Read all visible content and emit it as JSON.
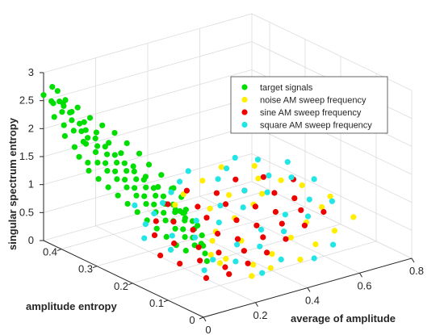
{
  "chart_data": {
    "type": "scatter",
    "title": "",
    "xlabel": "average of amplitude",
    "ylabel": "amplitude entropy",
    "zlabel": "singular spectrum entropy",
    "xlim": [
      0,
      0.8
    ],
    "ylim": [
      0,
      0.45
    ],
    "zlim": [
      0,
      3
    ],
    "x_ticks": [
      "0",
      "0.2",
      "0.4",
      "0.6",
      "0.8"
    ],
    "y_ticks": [
      "0",
      "0.1",
      "0.2",
      "0.3",
      "0.4"
    ],
    "z_ticks": [
      "0",
      "0.5",
      "1",
      "1.5",
      "2",
      "2.5",
      "3"
    ],
    "x_tick_values": [
      0,
      0.2,
      0.4,
      0.6,
      0.8
    ],
    "y_tick_values": [
      0,
      0.1,
      0.2,
      0.3,
      0.4
    ],
    "z_tick_values": [
      0,
      0.5,
      1,
      1.5,
      2,
      2.5,
      3
    ],
    "grid": true,
    "legend_position": "top-right",
    "series": [
      {
        "name": "target signals",
        "color": "#00dd00",
        "points": [
          [
            0.0,
            0.45,
            2.6
          ],
          [
            0.02,
            0.44,
            2.75
          ],
          [
            0.01,
            0.43,
            2.5
          ],
          [
            0.03,
            0.45,
            2.45
          ],
          [
            0.0,
            0.42,
            2.3
          ],
          [
            0.02,
            0.41,
            2.55
          ],
          [
            0.04,
            0.44,
            2.65
          ],
          [
            0.01,
            0.4,
            2.2
          ],
          [
            0.03,
            0.42,
            2.35
          ],
          [
            0.05,
            0.43,
            2.4
          ],
          [
            0.0,
            0.39,
            2.05
          ],
          [
            0.02,
            0.38,
            2.15
          ],
          [
            0.04,
            0.4,
            2.25
          ],
          [
            0.06,
            0.42,
            2.3
          ],
          [
            0.01,
            0.37,
            1.9
          ],
          [
            0.03,
            0.36,
            2.0
          ],
          [
            0.05,
            0.38,
            2.1
          ],
          [
            0.07,
            0.4,
            2.15
          ],
          [
            0.0,
            0.35,
            1.8
          ],
          [
            0.02,
            0.34,
            1.7
          ],
          [
            0.04,
            0.36,
            1.95
          ],
          [
            0.06,
            0.37,
            2.0
          ],
          [
            0.08,
            0.39,
            2.05
          ],
          [
            0.01,
            0.33,
            1.6
          ],
          [
            0.03,
            0.32,
            1.75
          ],
          [
            0.05,
            0.34,
            1.85
          ],
          [
            0.07,
            0.35,
            1.9
          ],
          [
            0.09,
            0.37,
            1.95
          ],
          [
            0.02,
            0.31,
            1.5
          ],
          [
            0.04,
            0.3,
            1.65
          ],
          [
            0.06,
            0.32,
            1.7
          ],
          [
            0.08,
            0.33,
            1.8
          ],
          [
            0.1,
            0.35,
            1.85
          ],
          [
            0.03,
            0.29,
            1.4
          ],
          [
            0.05,
            0.28,
            1.55
          ],
          [
            0.07,
            0.3,
            1.6
          ],
          [
            0.09,
            0.31,
            1.7
          ],
          [
            0.11,
            0.33,
            1.75
          ],
          [
            0.04,
            0.27,
            1.3
          ],
          [
            0.06,
            0.26,
            1.45
          ],
          [
            0.08,
            0.28,
            1.5
          ],
          [
            0.1,
            0.29,
            1.6
          ],
          [
            0.12,
            0.31,
            1.65
          ],
          [
            0.05,
            0.25,
            1.2
          ],
          [
            0.07,
            0.24,
            1.35
          ],
          [
            0.09,
            0.26,
            1.4
          ],
          [
            0.11,
            0.27,
            1.5
          ],
          [
            0.13,
            0.29,
            1.55
          ],
          [
            0.06,
            0.23,
            1.1
          ],
          [
            0.08,
            0.22,
            1.25
          ],
          [
            0.1,
            0.24,
            1.3
          ],
          [
            0.12,
            0.25,
            1.4
          ],
          [
            0.14,
            0.27,
            1.45
          ],
          [
            0.07,
            0.21,
            1.0
          ],
          [
            0.09,
            0.2,
            1.15
          ],
          [
            0.11,
            0.22,
            1.2
          ],
          [
            0.13,
            0.23,
            1.3
          ],
          [
            0.15,
            0.25,
            1.35
          ],
          [
            0.08,
            0.19,
            0.9
          ],
          [
            0.1,
            0.18,
            1.05
          ],
          [
            0.12,
            0.2,
            1.1
          ],
          [
            0.14,
            0.21,
            1.2
          ],
          [
            0.16,
            0.23,
            1.25
          ],
          [
            0.09,
            0.17,
            0.8
          ],
          [
            0.11,
            0.16,
            0.95
          ],
          [
            0.13,
            0.18,
            1.0
          ],
          [
            0.15,
            0.19,
            1.1
          ],
          [
            0.17,
            0.21,
            1.15
          ],
          [
            0.1,
            0.15,
            0.7
          ],
          [
            0.12,
            0.14,
            0.85
          ],
          [
            0.14,
            0.16,
            0.9
          ],
          [
            0.16,
            0.17,
            1.0
          ],
          [
            0.18,
            0.19,
            1.05
          ],
          [
            0.11,
            0.13,
            0.65
          ],
          [
            0.13,
            0.12,
            0.75
          ],
          [
            0.15,
            0.14,
            0.8
          ],
          [
            0.17,
            0.15,
            0.9
          ],
          [
            0.19,
            0.17,
            0.95
          ],
          [
            0.2,
            0.2,
            1.0
          ],
          [
            0.21,
            0.22,
            0.95
          ],
          [
            0.22,
            0.24,
            0.9
          ],
          [
            0.18,
            0.26,
            1.3
          ],
          [
            0.16,
            0.28,
            1.45
          ],
          [
            0.14,
            0.3,
            1.6
          ],
          [
            0.12,
            0.32,
            1.8
          ],
          [
            0.1,
            0.34,
            1.95
          ],
          [
            0.08,
            0.36,
            2.1
          ],
          [
            0.06,
            0.38,
            2.25
          ],
          [
            0.04,
            0.4,
            2.4
          ],
          [
            0.02,
            0.42,
            2.55
          ],
          [
            0.2,
            0.3,
            1.55
          ],
          [
            0.22,
            0.28,
            1.4
          ],
          [
            0.24,
            0.26,
            1.2
          ],
          [
            0.19,
            0.32,
            1.7
          ],
          [
            0.17,
            0.34,
            1.85
          ],
          [
            0.15,
            0.36,
            2.0
          ],
          [
            0.13,
            0.38,
            2.1
          ],
          [
            0.11,
            0.4,
            2.2
          ],
          [
            0.09,
            0.42,
            2.35
          ],
          [
            0.07,
            0.44,
            2.45
          ],
          [
            0.23,
            0.22,
            0.8
          ],
          [
            0.25,
            0.2,
            0.7
          ],
          [
            0.24,
            0.18,
            0.6
          ],
          [
            0.21,
            0.16,
            0.55
          ],
          [
            0.19,
            0.14,
            0.6
          ],
          [
            0.17,
            0.12,
            0.55
          ],
          [
            0.15,
            0.1,
            0.5
          ],
          [
            0.26,
            0.24,
            0.85
          ],
          [
            0.27,
            0.26,
            1.0
          ],
          [
            0.26,
            0.28,
            1.1
          ]
        ]
      },
      {
        "name": "noise AM sweep frequency",
        "color": "#ffee00",
        "points": [
          [
            0.2,
            0.1,
            0.4
          ],
          [
            0.25,
            0.12,
            0.35
          ],
          [
            0.3,
            0.08,
            0.3
          ],
          [
            0.35,
            0.15,
            0.45
          ],
          [
            0.4,
            0.1,
            0.3
          ],
          [
            0.45,
            0.18,
            0.5
          ],
          [
            0.5,
            0.12,
            0.4
          ],
          [
            0.55,
            0.2,
            0.55
          ],
          [
            0.6,
            0.15,
            0.45
          ],
          [
            0.65,
            0.22,
            0.6
          ],
          [
            0.7,
            0.18,
            0.5
          ],
          [
            0.72,
            0.25,
            0.65
          ],
          [
            0.68,
            0.28,
            0.7
          ],
          [
            0.62,
            0.3,
            0.75
          ],
          [
            0.58,
            0.26,
            0.65
          ],
          [
            0.52,
            0.24,
            0.6
          ],
          [
            0.48,
            0.28,
            0.7
          ],
          [
            0.42,
            0.22,
            0.55
          ],
          [
            0.38,
            0.26,
            0.65
          ],
          [
            0.32,
            0.2,
            0.5
          ],
          [
            0.28,
            0.18,
            0.45
          ],
          [
            0.22,
            0.14,
            0.4
          ],
          [
            0.18,
            0.06,
            0.35
          ],
          [
            0.24,
            0.04,
            0.3
          ],
          [
            0.34,
            0.06,
            0.25
          ],
          [
            0.44,
            0.05,
            0.3
          ],
          [
            0.54,
            0.08,
            0.35
          ],
          [
            0.64,
            0.1,
            0.4
          ],
          [
            0.74,
            0.12,
            0.45
          ],
          [
            0.76,
            0.2,
            0.55
          ],
          [
            0.3,
            0.3,
            0.7
          ],
          [
            0.36,
            0.32,
            0.75
          ],
          [
            0.46,
            0.34,
            0.8
          ],
          [
            0.56,
            0.36,
            0.85
          ],
          [
            0.66,
            0.34,
            0.8
          ]
        ]
      },
      {
        "name": "sine AM sweep frequency",
        "color": "#ee0000",
        "points": [
          [
            0.1,
            0.14,
            0.4
          ],
          [
            0.15,
            0.12,
            0.45
          ],
          [
            0.2,
            0.16,
            0.5
          ],
          [
            0.25,
            0.14,
            0.4
          ],
          [
            0.3,
            0.18,
            0.55
          ],
          [
            0.35,
            0.16,
            0.45
          ],
          [
            0.4,
            0.2,
            0.6
          ],
          [
            0.45,
            0.18,
            0.5
          ],
          [
            0.5,
            0.22,
            0.65
          ],
          [
            0.55,
            0.2,
            0.55
          ],
          [
            0.6,
            0.24,
            0.7
          ],
          [
            0.65,
            0.22,
            0.6
          ],
          [
            0.7,
            0.26,
            0.75
          ],
          [
            0.12,
            0.08,
            0.3
          ],
          [
            0.18,
            0.06,
            0.35
          ],
          [
            0.22,
            0.1,
            0.3
          ],
          [
            0.28,
            0.08,
            0.35
          ],
          [
            0.32,
            0.12,
            0.4
          ],
          [
            0.38,
            0.1,
            0.35
          ],
          [
            0.42,
            0.14,
            0.45
          ],
          [
            0.48,
            0.12,
            0.4
          ],
          [
            0.52,
            0.16,
            0.5
          ],
          [
            0.58,
            0.14,
            0.45
          ],
          [
            0.62,
            0.18,
            0.55
          ],
          [
            0.68,
            0.16,
            0.5
          ],
          [
            0.26,
            0.22,
            0.55
          ],
          [
            0.34,
            0.24,
            0.6
          ],
          [
            0.44,
            0.26,
            0.65
          ],
          [
            0.54,
            0.28,
            0.7
          ],
          [
            0.64,
            0.3,
            0.75
          ],
          [
            0.16,
            0.2,
            0.5
          ],
          [
            0.24,
            0.26,
            0.6
          ],
          [
            0.36,
            0.28,
            0.65
          ],
          [
            0.46,
            0.3,
            0.7
          ],
          [
            0.56,
            0.32,
            0.75
          ],
          [
            0.08,
            0.18,
            0.45
          ],
          [
            0.14,
            0.24,
            0.55
          ],
          [
            0.2,
            0.28,
            0.6
          ],
          [
            0.3,
            0.32,
            0.65
          ],
          [
            0.4,
            0.34,
            0.7
          ]
        ]
      },
      {
        "name": "square AM sweep frequency",
        "color": "#22e5e5",
        "points": [
          [
            0.12,
            0.18,
            0.5
          ],
          [
            0.18,
            0.22,
            0.55
          ],
          [
            0.24,
            0.2,
            0.5
          ],
          [
            0.3,
            0.24,
            0.6
          ],
          [
            0.36,
            0.22,
            0.55
          ],
          [
            0.42,
            0.26,
            0.65
          ],
          [
            0.48,
            0.24,
            0.6
          ],
          [
            0.54,
            0.28,
            0.7
          ],
          [
            0.6,
            0.26,
            0.65
          ],
          [
            0.66,
            0.3,
            0.75
          ],
          [
            0.72,
            0.28,
            0.7
          ],
          [
            0.76,
            0.32,
            0.8
          ],
          [
            0.14,
            0.1,
            0.35
          ],
          [
            0.2,
            0.12,
            0.4
          ],
          [
            0.26,
            0.1,
            0.35
          ],
          [
            0.32,
            0.14,
            0.45
          ],
          [
            0.38,
            0.12,
            0.4
          ],
          [
            0.44,
            0.16,
            0.5
          ],
          [
            0.5,
            0.14,
            0.45
          ],
          [
            0.56,
            0.18,
            0.55
          ],
          [
            0.62,
            0.16,
            0.5
          ],
          [
            0.68,
            0.2,
            0.6
          ],
          [
            0.74,
            0.18,
            0.55
          ],
          [
            0.22,
            0.3,
            0.65
          ],
          [
            0.28,
            0.32,
            0.7
          ],
          [
            0.34,
            0.34,
            0.75
          ],
          [
            0.4,
            0.36,
            0.8
          ],
          [
            0.46,
            0.38,
            0.85
          ],
          [
            0.16,
            0.28,
            0.6
          ],
          [
            0.1,
            0.24,
            0.55
          ],
          [
            0.52,
            0.34,
            0.75
          ],
          [
            0.58,
            0.36,
            0.8
          ],
          [
            0.64,
            0.38,
            0.85
          ],
          [
            0.7,
            0.36,
            0.8
          ],
          [
            0.28,
            0.04,
            0.3
          ],
          [
            0.38,
            0.06,
            0.35
          ],
          [
            0.48,
            0.04,
            0.3
          ],
          [
            0.58,
            0.06,
            0.35
          ],
          [
            0.78,
            0.26,
            0.65
          ],
          [
            0.2,
            0.34,
            0.7
          ]
        ]
      }
    ]
  }
}
